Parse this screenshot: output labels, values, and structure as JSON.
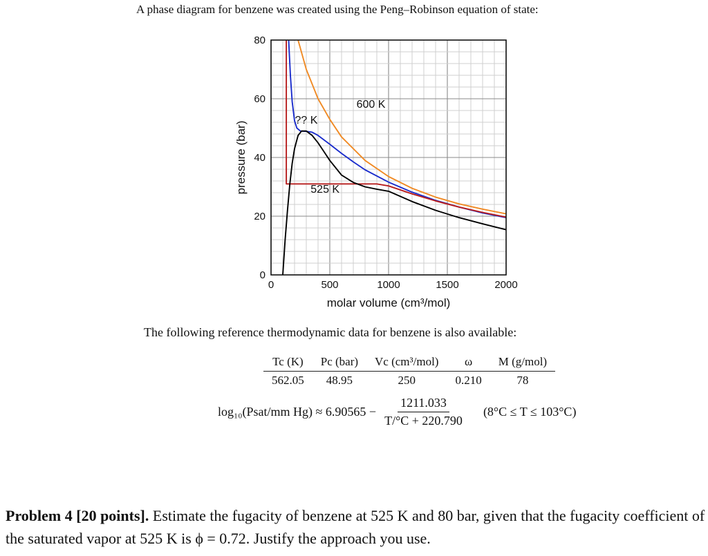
{
  "intro_text": "A phase diagram for benzene was created using the Peng–Robinson equation of state:",
  "chart_data": {
    "type": "line",
    "xlabel": "molar volume (cm³/mol)",
    "ylabel": "pressure (bar)",
    "xlim": [
      0,
      2000
    ],
    "ylim": [
      0,
      80
    ],
    "xticks": [
      0,
      500,
      1000,
      1500,
      2000
    ],
    "yticks": [
      0,
      20,
      40,
      60,
      80
    ],
    "grid": true,
    "series": [
      {
        "name": "600 K",
        "color": "#f08a24",
        "x": [
          230,
          300,
          400,
          500,
          600,
          800,
          1000,
          1200,
          1400,
          1600,
          1800,
          2000
        ],
        "y": [
          80,
          70,
          60,
          53,
          47,
          39,
          33.5,
          29.5,
          26.5,
          24.2,
          22.4,
          20.8
        ]
      },
      {
        "name": "?? K",
        "color": "#1a2ccc",
        "x": [
          150,
          165,
          180,
          200,
          220,
          250,
          300,
          350,
          400,
          450,
          500,
          600,
          700,
          800,
          1000,
          1200,
          1400,
          1600,
          1800,
          2000
        ],
        "y": [
          80,
          68,
          59,
          52.5,
          50,
          49,
          48.9,
          48.6,
          47.5,
          46,
          44.5,
          41.4,
          38.5,
          35.8,
          31.6,
          28.2,
          25.4,
          23.1,
          21.1,
          19.5
        ]
      },
      {
        "name": "525 K",
        "color": "#b81e1e",
        "x": [
          130,
          130,
          150,
          200,
          300,
          400,
          500,
          600,
          700,
          800,
          900,
          1000,
          1200,
          1400,
          1600,
          1800,
          2000
        ],
        "y": [
          80,
          31,
          31,
          31,
          31,
          31,
          31,
          31,
          31,
          31,
          31,
          30.3,
          27.6,
          25.2,
          23.1,
          21.3,
          19.7
        ]
      },
      {
        "name": "",
        "color": "#000000",
        "x": [
          100,
          120,
          140,
          160,
          180,
          200,
          230,
          260,
          300,
          350,
          400,
          450,
          500,
          600,
          700,
          800,
          900,
          1000,
          1200,
          1400,
          1600,
          1800,
          2000
        ],
        "y": [
          0,
          12,
          22,
          31,
          38,
          43,
          47.5,
          49,
          49,
          47.5,
          45,
          42,
          39,
          34,
          31.5,
          30,
          29.2,
          28.5,
          25,
          22,
          19.5,
          17.4,
          15.4
        ]
      }
    ],
    "annotations": [
      {
        "text": "600 K",
        "x": 850,
        "y": 57
      },
      {
        "text": "?? K",
        "x": 300,
        "y": 51.5
      },
      {
        "text": "525 K",
        "x": 460,
        "y": 28
      }
    ]
  },
  "ref_intro": "The following reference thermodynamic data for benzene is also available:",
  "ref_table": {
    "headers": [
      "Tc (K)",
      "Pc (bar)",
      "Vc (cm³/mol)",
      "ω",
      "M (g/mol)"
    ],
    "values": [
      "562.05",
      "48.95",
      "250",
      "0.210",
      "78"
    ]
  },
  "equation": {
    "lhs": "log₁₀(Psat/mm Hg) ≈ 6.90565 −",
    "numerator": "1211.033",
    "denominator": "T/°C + 220.790",
    "range": "(8°C ≤ T ≤ 103°C)"
  },
  "problem": {
    "label": "Problem 4 [20 points].",
    "text": " Estimate the fugacity of benzene at 525 K and 80 bar, given that the fugacity coefficient of the saturated vapor at 525 K is ϕ = 0.72. Justify the approach you use."
  }
}
